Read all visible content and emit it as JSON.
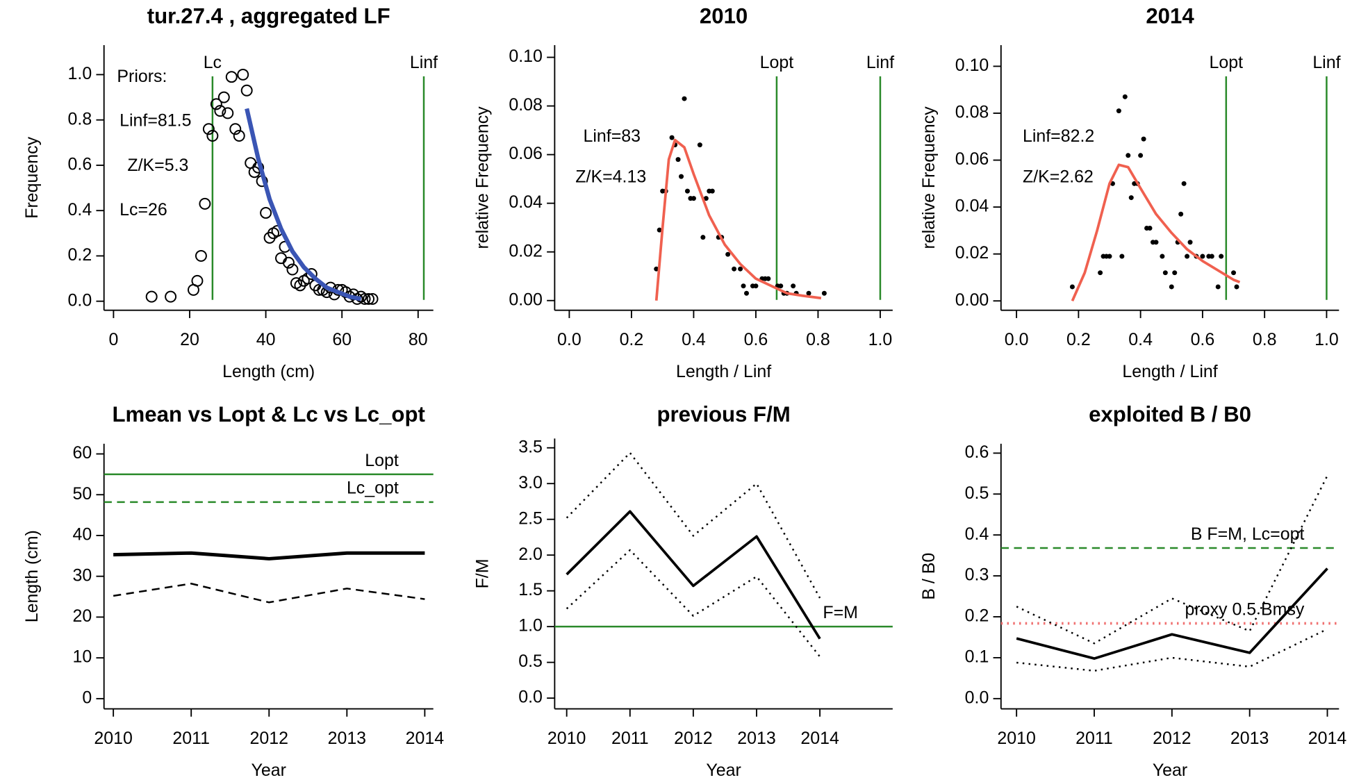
{
  "chart_data": [
    {
      "type": "scatter",
      "title": "tur.27.4 , aggregated LF",
      "x_label": "Length (cm)",
      "y_label": "Frequency",
      "xlim": [
        -2.5,
        84
      ],
      "ylim": [
        -0.04,
        1.13
      ],
      "xticks": [
        0,
        20,
        40,
        60,
        80
      ],
      "yticks": [
        {
          "value": 0,
          "label": "0.0"
        },
        0.2,
        0.4,
        0.6,
        0.8,
        {
          "value": 1,
          "label": "1.0"
        }
      ],
      "series": [
        {
          "type": "scatter",
          "marker": "open",
          "color": "#000000",
          "x": [
            10,
            15,
            21,
            22,
            23,
            24,
            25,
            26,
            27,
            28,
            29,
            30,
            31,
            32,
            33,
            34,
            35,
            36,
            37,
            38,
            39,
            40,
            41,
            42,
            43,
            44,
            45,
            46,
            47,
            48,
            49,
            50,
            51,
            52,
            53,
            54,
            55,
            56,
            57,
            58,
            59,
            60,
            61,
            62,
            63,
            64,
            65,
            66,
            67,
            68
          ],
          "values": [
            0.02,
            0.02,
            0.05,
            0.09,
            0.2,
            0.43,
            0.76,
            0.73,
            0.87,
            0.84,
            0.9,
            0.83,
            0.99,
            0.76,
            0.73,
            1.0,
            0.93,
            0.61,
            0.57,
            0.59,
            0.53,
            0.39,
            0.28,
            0.3,
            0.31,
            0.19,
            0.24,
            0.17,
            0.14,
            0.08,
            0.07,
            0.09,
            0.1,
            0.12,
            0.07,
            0.05,
            0.05,
            0.04,
            0.06,
            0.03,
            0.05,
            0.05,
            0.04,
            0.02,
            0.03,
            0.01,
            0.02,
            0.01,
            0.01,
            0.01
          ]
        },
        {
          "type": "line",
          "color": "#3a55b4",
          "width": 5,
          "dash": "solid",
          "x": [
            35,
            38,
            41,
            44,
            47,
            50,
            53,
            56,
            59,
            62,
            65
          ],
          "values": [
            0.85,
            0.63,
            0.45,
            0.32,
            0.22,
            0.15,
            0.1,
            0.06,
            0.04,
            0.02,
            0.01
          ]
        }
      ],
      "vlines": [
        {
          "label": "Lc",
          "value": 26,
          "color": "#2a8a2a"
        },
        {
          "label": "Linf",
          "value": 81.5,
          "color": "#2a8a2a"
        }
      ],
      "annotations": [
        "Priors:",
        "Linf=81.5",
        "Z/K=5.3",
        "Lc=26"
      ]
    },
    {
      "type": "scatter",
      "title": "2010",
      "x_label": "Length / Linf",
      "y_label": "relative Frequency",
      "xlim": [
        -0.047,
        1.04
      ],
      "ylim": [
        -0.004,
        0.105
      ],
      "xticks": [
        {
          "value": 0,
          "label": "0.0"
        },
        0.2,
        0.4,
        0.6,
        0.8,
        {
          "value": 1,
          "label": "1.0"
        }
      ],
      "yticks": [
        {
          "value": 0,
          "label": "0.00"
        },
        0.02,
        0.04,
        0.06,
        0.08,
        {
          "value": 0.1,
          "label": "0.10"
        }
      ],
      "series": [
        {
          "type": "scatter",
          "marker": "filled",
          "color": "#000000",
          "x": [
            0.28,
            0.29,
            0.3,
            0.31,
            0.33,
            0.34,
            0.35,
            0.36,
            0.37,
            0.38,
            0.39,
            0.4,
            0.42,
            0.43,
            0.44,
            0.45,
            0.46,
            0.48,
            0.49,
            0.51,
            0.53,
            0.55,
            0.56,
            0.57,
            0.59,
            0.6,
            0.62,
            0.63,
            0.64,
            0.67,
            0.68,
            0.69,
            0.7,
            0.72,
            0.73,
            0.77,
            0.82
          ],
          "values": [
            0.013,
            0.029,
            0.045,
            0.045,
            0.067,
            0.064,
            0.058,
            0.051,
            0.083,
            0.045,
            0.042,
            0.042,
            0.064,
            0.026,
            0.042,
            0.045,
            0.045,
            0.026,
            0.026,
            0.019,
            0.013,
            0.013,
            0.006,
            0.003,
            0.006,
            0.006,
            0.009,
            0.009,
            0.009,
            0.006,
            0.006,
            0.003,
            0.003,
            0.006,
            0.003,
            0.003,
            0.003
          ]
        },
        {
          "type": "line",
          "color": "#f0604f",
          "width": 3,
          "dash": "solid",
          "x": [
            0.28,
            0.3,
            0.32,
            0.34,
            0.37,
            0.4,
            0.45,
            0.5,
            0.55,
            0.6,
            0.65,
            0.7,
            0.75,
            0.81
          ],
          "values": [
            0,
            0.03,
            0.058,
            0.066,
            0.063,
            0.052,
            0.035,
            0.023,
            0.015,
            0.009,
            0.006,
            0.003,
            0.002,
            0.001
          ]
        }
      ],
      "vlines": [
        {
          "label": "Lopt",
          "value": 0.667,
          "color": "#2a8a2a"
        },
        {
          "label": "Linf",
          "value": 1.0,
          "color": "#2a8a2a"
        }
      ],
      "annotations": [
        "Linf=83",
        "Z/K=4.13"
      ]
    },
    {
      "type": "scatter",
      "title": "2014",
      "x_label": "Length / Linf",
      "y_label": "relative Frequency",
      "xlim": [
        -0.05,
        1.04
      ],
      "ylim": [
        -0.004,
        0.109
      ],
      "xticks": [
        {
          "value": 0,
          "label": "0.0"
        },
        0.2,
        0.4,
        0.6,
        0.8,
        {
          "value": 1,
          "label": "1.0"
        }
      ],
      "yticks": [
        {
          "value": 0,
          "label": "0.00"
        },
        0.02,
        0.04,
        0.06,
        0.08,
        {
          "value": 0.1,
          "label": "0.10"
        }
      ],
      "series": [
        {
          "type": "scatter",
          "marker": "filled",
          "color": "#000000",
          "x": [
            0.18,
            0.27,
            0.28,
            0.29,
            0.3,
            0.31,
            0.33,
            0.34,
            0.35,
            0.36,
            0.37,
            0.38,
            0.39,
            0.4,
            0.41,
            0.42,
            0.43,
            0.44,
            0.45,
            0.47,
            0.48,
            0.5,
            0.51,
            0.52,
            0.53,
            0.54,
            0.55,
            0.56,
            0.58,
            0.6,
            0.62,
            0.63,
            0.65,
            0.66,
            0.7,
            0.71
          ],
          "values": [
            0.006,
            0.012,
            0.019,
            0.019,
            0.019,
            0.05,
            0.081,
            0.019,
            0.087,
            0.062,
            0.044,
            0.05,
            0.05,
            0.062,
            0.069,
            0.031,
            0.031,
            0.025,
            0.025,
            0.019,
            0.012,
            0.006,
            0.012,
            0.025,
            0.037,
            0.05,
            0.019,
            0.025,
            0.019,
            0.019,
            0.019,
            0.019,
            0.006,
            0.019,
            0.012,
            0.006
          ]
        },
        {
          "type": "line",
          "color": "#f0604f",
          "width": 3,
          "dash": "solid",
          "x": [
            0.18,
            0.22,
            0.26,
            0.3,
            0.33,
            0.36,
            0.4,
            0.45,
            0.5,
            0.55,
            0.6,
            0.65,
            0.7,
            0.72
          ],
          "values": [
            0,
            0.012,
            0.03,
            0.05,
            0.058,
            0.057,
            0.048,
            0.037,
            0.029,
            0.022,
            0.017,
            0.013,
            0.009,
            0.008
          ]
        }
      ],
      "vlines": [
        {
          "label": "Lopt",
          "value": 0.676,
          "color": "#2a8a2a"
        },
        {
          "label": "Linf",
          "value": 1.0,
          "color": "#2a8a2a"
        }
      ],
      "annotations": [
        "Linf=82.2",
        "Z/K=2.62"
      ]
    },
    {
      "type": "line",
      "title": "Lmean vs Lopt & Lc vs Lc_opt",
      "x_label": "Year",
      "y_label": "Length (cm)",
      "x": [
        2010,
        2011,
        2012,
        2013,
        2014
      ],
      "xlim": [
        2009.88,
        2014.11
      ],
      "ylim": [
        -2.5,
        62.5
      ],
      "xticks": [
        2010,
        2011,
        2012,
        2013,
        2014
      ],
      "yticks": [
        0,
        10,
        20,
        30,
        40,
        50,
        60
      ],
      "series": [
        {
          "color": "#000000",
          "width": 4,
          "dash": "solid",
          "values": [
            35.3,
            35.7,
            34.3,
            35.7,
            35.7
          ]
        },
        {
          "color": "#000000",
          "width": 2,
          "dash": "dashed",
          "values": [
            25.2,
            28.2,
            23.6,
            27,
            24.4
          ]
        }
      ],
      "hlines": [
        {
          "label": "Lopt",
          "value": 55,
          "color": "#2a8a2a",
          "dash": "solid"
        },
        {
          "label": "Lc_opt",
          "value": 48.2,
          "color": "#2a8a2a",
          "dash": "dashed"
        }
      ]
    },
    {
      "type": "line",
      "title": "previous F/M",
      "x_label": "Year",
      "y_label": "F/M",
      "x": [
        2010,
        2011,
        2012,
        2013,
        2014
      ],
      "xlim": [
        2009.81,
        2015.15
      ],
      "ylim": [
        -0.15,
        3.63
      ],
      "xticks": [
        2010,
        2011,
        2012,
        2013,
        2014
      ],
      "yticks": [
        {
          "value": 0,
          "label": "0.0"
        },
        0.5,
        {
          "value": 1,
          "label": "1.0"
        },
        1.5,
        {
          "value": 2,
          "label": "2.0"
        },
        2.5,
        {
          "value": 3,
          "label": "3.0"
        },
        3.5
      ],
      "series": [
        {
          "color": "#000000",
          "width": 3,
          "dash": "solid",
          "values": [
            1.73,
            2.61,
            1.57,
            2.26,
            0.83
          ]
        },
        {
          "color": "#000000",
          "width": 2,
          "dash": "dotted",
          "values": [
            2.52,
            3.43,
            2.27,
            3.0,
            1.4
          ]
        },
        {
          "color": "#000000",
          "width": 2,
          "dash": "dotted",
          "values": [
            1.25,
            2.07,
            1.15,
            1.7,
            0.58
          ]
        }
      ],
      "hlines": [
        {
          "label": "F=M",
          "value": 1.0,
          "color": "#2a8a2a",
          "dash": "solid"
        }
      ]
    },
    {
      "type": "line",
      "title": "exploited B / B0",
      "x_label": "Year",
      "y_label": "B / B0",
      "x": [
        2010,
        2011,
        2012,
        2013,
        2014
      ],
      "xlim": [
        2009.8,
        2014.15
      ],
      "ylim": [
        -0.025,
        0.623
      ],
      "xticks": [
        2010,
        2011,
        2012,
        2013,
        2014
      ],
      "yticks": [
        {
          "value": 0,
          "label": "0.0"
        },
        0.1,
        0.2,
        0.3,
        0.4,
        0.5,
        0.6
      ],
      "series": [
        {
          "color": "#000000",
          "width": 3,
          "dash": "solid",
          "values": [
            0.147,
            0.098,
            0.157,
            0.112,
            0.318
          ]
        },
        {
          "color": "#000000",
          "width": 2,
          "dash": "dotted",
          "values": [
            0.225,
            0.135,
            0.245,
            0.165,
            0.545
          ]
        },
        {
          "color": "#000000",
          "width": 2,
          "dash": "dotted",
          "values": [
            0.088,
            0.068,
            0.1,
            0.078,
            0.17
          ]
        }
      ],
      "hlines": [
        {
          "label": "B F=M, Lc=opt",
          "value": 0.368,
          "color": "#2a8a2a",
          "dash": "dashed"
        },
        {
          "label": "proxy 0.5 Bmsy",
          "value": 0.184,
          "color": "#f07070",
          "dash": "dotted"
        }
      ]
    }
  ]
}
